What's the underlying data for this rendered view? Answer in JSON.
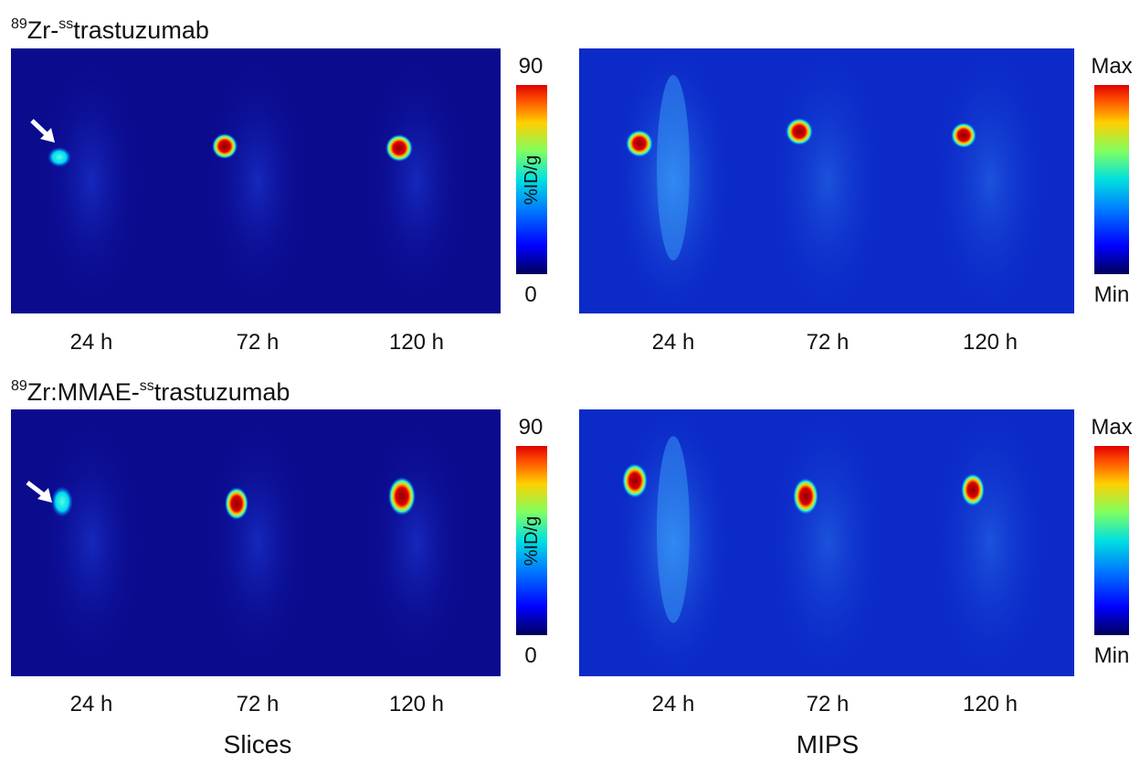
{
  "rows": [
    {
      "title": {
        "sup1": "89",
        "main1": "Zr-",
        "sup2": "ss",
        "main2": "trastuzumab"
      },
      "slices": {
        "times": [
          "24 h",
          "72 h",
          "120 h"
        ],
        "scale": {
          "max": "90",
          "min": "0",
          "label": "%ID/g"
        }
      },
      "mips": {
        "times": [
          "24 h",
          "72 h",
          "120 h"
        ],
        "scale": {
          "max": "Max",
          "min": "Min"
        }
      }
    },
    {
      "title": {
        "sup1": "89",
        "main1": "Zr:MMAE-",
        "sup2": "ss",
        "main2": "trastuzumab"
      },
      "slices": {
        "times": [
          "24 h",
          "72 h",
          "120 h"
        ],
        "scale": {
          "max": "90",
          "min": "0",
          "label": "%ID/g"
        }
      },
      "mips": {
        "times": [
          "24 h",
          "72 h",
          "120 h"
        ],
        "scale": {
          "max": "Max",
          "min": "Min"
        }
      }
    }
  ],
  "footer": {
    "slices": "Slices",
    "mips": "MIPS"
  }
}
